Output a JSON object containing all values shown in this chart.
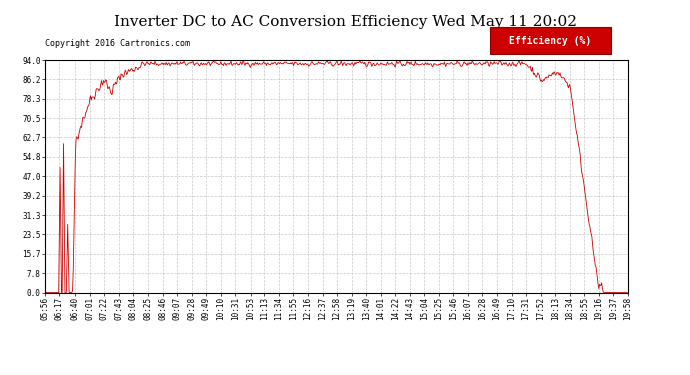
{
  "title": "Inverter DC to AC Conversion Efficiency Wed May 11 20:02",
  "copyright": "Copyright 2016 Cartronics.com",
  "legend_label": "Efficiency (%)",
  "legend_bg": "#cc0000",
  "legend_text_color": "#ffffff",
  "line_color": "#cc0000",
  "background_color": "#ffffff",
  "grid_color": "#bbbbbb",
  "ylim": [
    0.0,
    94.0
  ],
  "yticks": [
    0.0,
    7.8,
    15.7,
    23.5,
    31.3,
    39.2,
    47.0,
    54.8,
    62.7,
    70.5,
    78.3,
    86.2,
    94.0
  ],
  "total_minutes": 842,
  "xtick_labels": [
    "05:56",
    "06:17",
    "06:40",
    "07:01",
    "07:22",
    "07:43",
    "08:04",
    "08:25",
    "08:46",
    "09:07",
    "09:28",
    "09:49",
    "10:10",
    "10:31",
    "10:53",
    "11:13",
    "11:34",
    "11:55",
    "12:16",
    "12:37",
    "12:58",
    "13:19",
    "13:40",
    "14:01",
    "14:22",
    "14:43",
    "15:04",
    "15:25",
    "15:46",
    "16:07",
    "16:28",
    "16:49",
    "17:10",
    "17:31",
    "17:52",
    "18:13",
    "18:34",
    "18:55",
    "19:16",
    "19:37",
    "19:58"
  ],
  "title_fontsize": 11,
  "copyright_fontsize": 6,
  "tick_fontsize": 5.5,
  "legend_fontsize": 7
}
